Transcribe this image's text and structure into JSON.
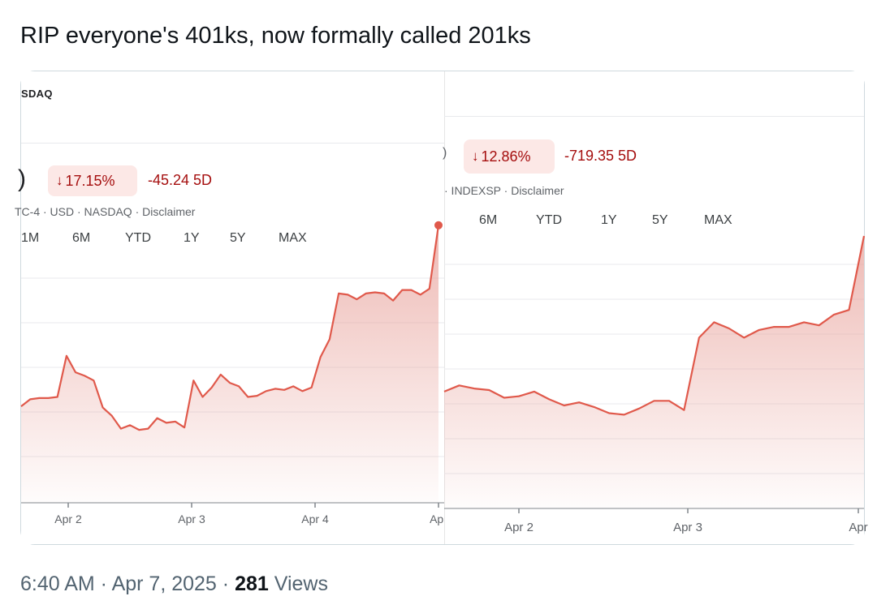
{
  "tweet": {
    "text": "RIP everyone's 401ks, now formally called 201ks",
    "time": "6:40 AM",
    "sep1": " · ",
    "date": "Apr 7, 2025",
    "sep2": " · ",
    "views_count": "281",
    "views_label": " Views"
  },
  "left_panel": {
    "exchange": "SDAQ",
    "price_fragment": ")",
    "chip_arrow": "↓",
    "percent_change": "17.15%",
    "change": "-45.24 5D",
    "meta": "TC-4 · USD · NASDAQ · Disclaimer",
    "ranges": [
      "1M",
      "6M",
      "YTD",
      "1Y",
      "5Y",
      "MAX"
    ],
    "x_ticks": [
      "Apr 2",
      "Apr 3",
      "Apr 4",
      "Apr"
    ]
  },
  "right_panel": {
    "price_fragment": ")",
    "chip_arrow": "↓",
    "percent_change": "12.86%",
    "change": "-719.35 5D",
    "meta": "· INDEXSP · Disclaimer",
    "ranges": [
      "6M",
      "YTD",
      "1Y",
      "5Y",
      "MAX"
    ],
    "x_ticks": [
      "Apr 2",
      "Apr 3",
      "Apr"
    ]
  },
  "colors": {
    "line": "#e0594b",
    "fill_top": "#e8a29b",
    "chip_bg": "#fce8e6",
    "negative": "#a50e0e"
  },
  "chart_data": [
    {
      "type": "area",
      "title": "",
      "x_ticks": [
        "Apr 2",
        "Apr 3",
        "Apr 4",
        "Apr"
      ],
      "series": [
        {
          "values": [
            0.78,
            0.72,
            0.71,
            0.71,
            0.7,
            0.35,
            0.49,
            0.52,
            0.56,
            0.79,
            0.86,
            0.97,
            0.94,
            0.98,
            0.97,
            0.88,
            0.92,
            0.91,
            0.96,
            0.56,
            0.7,
            0.62,
            0.51,
            0.58,
            0.61,
            0.7,
            0.69,
            0.65,
            0.63,
            0.64,
            0.61,
            0.65,
            0.62,
            0.36,
            0.21,
            -0.18,
            -0.17,
            -0.13,
            -0.18,
            -0.19,
            -0.18,
            -0.12,
            -0.21,
            -0.21,
            -0.17,
            -0.22,
            -0.76
          ]
        }
      ],
      "grid": true
    },
    {
      "type": "area",
      "title": "",
      "x_ticks": [
        "Apr 2",
        "Apr 3",
        "Apr"
      ],
      "series": [
        {
          "values": [
            0.71,
            0.67,
            0.69,
            0.7,
            0.75,
            0.74,
            0.71,
            0.76,
            0.8,
            0.78,
            0.81,
            0.85,
            0.86,
            0.82,
            0.77,
            0.77,
            0.83,
            0.36,
            0.26,
            0.3,
            0.36,
            0.31,
            0.29,
            0.29,
            0.26,
            0.28,
            0.21,
            0.18,
            -0.3
          ]
        }
      ],
      "grid": true
    }
  ]
}
